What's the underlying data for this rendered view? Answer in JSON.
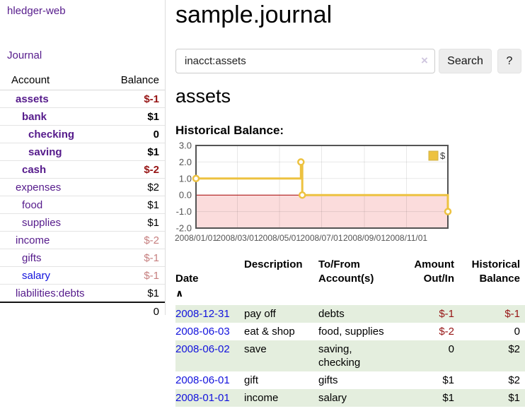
{
  "colors": {
    "purple_link": "#551a8b",
    "blue_link": "#1212dd",
    "negative_strong": "#961414",
    "negative_soft": "#c67f7f",
    "row_green": "#e4eede",
    "chart_gold": "#edc240",
    "chart_border": "#545454",
    "zero_line": "#a40000",
    "negative_region": "#fbdcdc",
    "divider": "#dddddd",
    "button_bg": "#ededed",
    "input_border": "#cccccc",
    "clear_icon": "#cfc6df"
  },
  "sidebar": {
    "app_title": "hledger-web",
    "nav": {
      "journal": "Journal"
    },
    "accounts": {
      "headers": {
        "account": "Account",
        "balance": "Balance"
      },
      "rows": [
        {
          "name": "assets",
          "balance": "$-1",
          "depth": 1,
          "current": true
        },
        {
          "name": "bank",
          "balance": "$1",
          "depth": 2,
          "current": true
        },
        {
          "name": "checking",
          "balance": "0",
          "depth": 3,
          "current": true
        },
        {
          "name": "saving",
          "balance": "$1",
          "depth": 3,
          "current": true
        },
        {
          "name": "cash",
          "balance": "$-2",
          "depth": 2,
          "current": true
        },
        {
          "name": "expenses",
          "balance": "$2",
          "depth": 1
        },
        {
          "name": "food",
          "balance": "$1",
          "depth": 2
        },
        {
          "name": "supplies",
          "balance": "$1",
          "depth": 2
        },
        {
          "name": "income",
          "balance": "$-2",
          "depth": 1
        },
        {
          "name": "gifts",
          "balance": "$-1",
          "depth": 2
        },
        {
          "name": "salary",
          "balance": "$-1",
          "depth": 2,
          "link": "blue"
        },
        {
          "name": "liabilities:debts",
          "balance": "$1",
          "depth": 1
        }
      ],
      "total": "0"
    }
  },
  "main": {
    "page_title": "sample.journal",
    "search": {
      "value": "inacct:assets",
      "clear_icon": "×",
      "search_button": "Search",
      "help_button": "?"
    },
    "account_heading": "assets",
    "chart_title": "Historical Balance:"
  },
  "chart_data": {
    "type": "line",
    "step": true,
    "title": "Historical Balance:",
    "series": [
      {
        "name": "$",
        "color": "#edc240",
        "points": [
          [
            "2008-01-01",
            1
          ],
          [
            "2008-06-01",
            2
          ],
          [
            "2008-06-03",
            0
          ],
          [
            "2008-12-31",
            -1
          ]
        ]
      }
    ],
    "x_range": [
      "2008-01-01",
      "2008-12-31"
    ],
    "y_range": [
      -2,
      3
    ],
    "x_ticks": [
      "2008/01/01",
      "2008/03/01",
      "2008/05/01",
      "2008/07/01",
      "2008/09/01",
      "2008/11/01"
    ],
    "y_ticks": [
      "3.0",
      "2.0",
      "1.0",
      "0.0",
      "-1.0",
      "-2.0"
    ],
    "legend_position": "top-right",
    "grid": true
  },
  "register": {
    "sort_icon": "∧",
    "headers": {
      "date": "Date",
      "description": "Description",
      "tofrom": [
        "To/From",
        "Account(s)"
      ],
      "amount": [
        "Amount",
        "Out/In"
      ],
      "balance": [
        "Historical",
        "Balance"
      ]
    },
    "rows": [
      {
        "date": "2008-12-31",
        "description": "pay off",
        "tofrom": "debts",
        "amount": "$-1",
        "balance": "$-1"
      },
      {
        "date": "2008-06-03",
        "description": "eat & shop",
        "tofrom": "food, supplies",
        "amount": "$-2",
        "balance": "0"
      },
      {
        "date": "2008-06-02",
        "description": "save",
        "tofrom": [
          "saving,",
          "checking"
        ],
        "amount": "0",
        "balance": "$2"
      },
      {
        "date": "2008-06-01",
        "description": "gift",
        "tofrom": "gifts",
        "amount": "$1",
        "balance": "$2"
      },
      {
        "date": "2008-01-01",
        "description": "income",
        "tofrom": "salary",
        "amount": "$1",
        "balance": "$1"
      }
    ]
  }
}
